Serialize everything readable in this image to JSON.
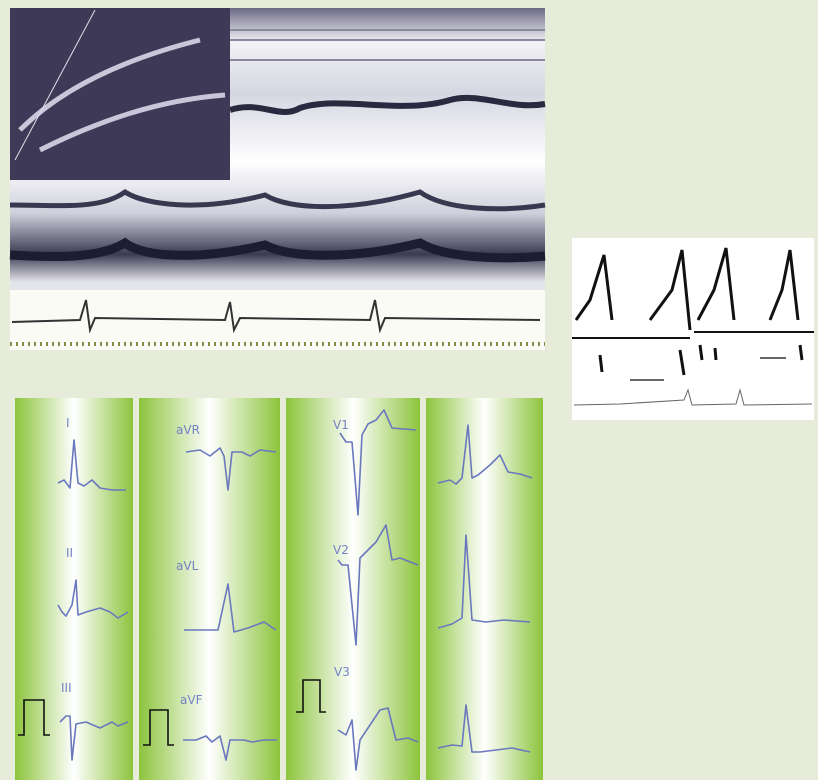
{
  "ecg_columns": [
    [
      "I",
      "II",
      "III"
    ],
    [
      "aVR",
      "aVL",
      "aVF"
    ],
    [
      "V1",
      "V2",
      "V3"
    ]
  ]
}
